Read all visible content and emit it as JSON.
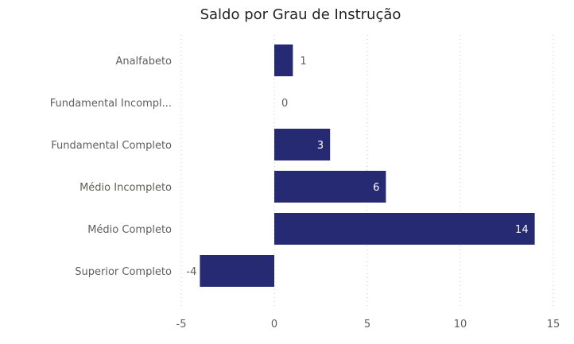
{
  "chart_data": {
    "type": "bar",
    "orientation": "horizontal",
    "title": "Saldo por Grau de Instrução",
    "categories": [
      "Analfabeto",
      "Fundamental Incompl...",
      "Fundamental Completo",
      "Médio Incompleto",
      "Médio Completo",
      "Superior Completo"
    ],
    "values": [
      1,
      0,
      3,
      6,
      14,
      -4
    ],
    "xlim": [
      -5,
      15
    ],
    "xticks": [
      "-5",
      "0",
      "5",
      "10",
      "15"
    ],
    "grid": true,
    "legend": "none",
    "bar_color": "#252a72"
  }
}
